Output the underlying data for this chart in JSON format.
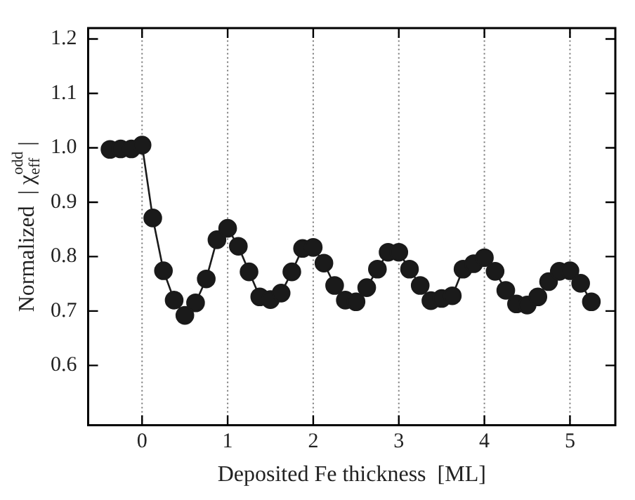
{
  "chart_data": {
    "type": "line",
    "xlabel": "Deposited Fe thickness  [ML]",
    "ylabel": "Normalized  | χ$^{odd}$$_{eff}$ |",
    "x": [
      -0.375,
      -0.25,
      -0.125,
      0,
      0.125,
      0.25,
      0.375,
      0.5,
      0.625,
      0.75,
      0.875,
      1.0,
      1.125,
      1.25,
      1.375,
      1.5,
      1.625,
      1.75,
      1.875,
      2.0,
      2.125,
      2.25,
      2.375,
      2.5,
      2.625,
      2.75,
      2.875,
      3.0,
      3.125,
      3.25,
      3.375,
      3.5,
      3.625,
      3.75,
      3.875,
      4.0,
      4.125,
      4.25,
      4.375,
      4.5,
      4.625,
      4.75,
      4.875,
      5.0,
      5.125,
      5.25
    ],
    "series": [
      {
        "color": "#1a1a1a",
        "values": [
          0.997,
          0.998,
          0.998,
          1.005,
          0.871,
          0.774,
          0.72,
          0.692,
          0.715,
          0.759,
          0.831,
          0.852,
          0.819,
          0.772,
          0.726,
          0.721,
          0.733,
          0.772,
          0.815,
          0.817,
          0.788,
          0.747,
          0.72,
          0.717,
          0.743,
          0.777,
          0.808,
          0.808,
          0.777,
          0.747,
          0.719,
          0.723,
          0.728,
          0.777,
          0.787,
          0.798,
          0.773,
          0.738,
          0.713,
          0.711,
          0.726,
          0.754,
          0.773,
          0.774,
          0.751,
          0.717
        ]
      }
    ],
    "xlim": [
      -0.63,
      5.53
    ],
    "xticks": [
      0,
      1,
      2,
      3,
      4,
      5
    ],
    "ylim": [
      0.49,
      1.22
    ],
    "yticks": [
      0.6,
      0.7,
      0.8,
      0.9,
      "1.0",
      1.1,
      1.2
    ],
    "ref_lines": [
      {
        "axis": "x",
        "value": 0,
        "line_style": "dotted",
        "color": "#777777"
      },
      {
        "axis": "x",
        "value": 1,
        "line_style": "dotted",
        "color": "#777777"
      },
      {
        "axis": "x",
        "value": 2,
        "line_style": "dotted",
        "color": "#777777"
      },
      {
        "axis": "x",
        "value": 3,
        "line_style": "dotted",
        "color": "#777777"
      },
      {
        "axis": "x",
        "value": 4,
        "line_style": "dotted",
        "color": "#777777"
      },
      {
        "axis": "x",
        "value": 5,
        "line_style": "dotted",
        "color": "#777777"
      }
    ],
    "grid": false,
    "legend": false,
    "marker": "circle",
    "line_style": "solid"
  }
}
